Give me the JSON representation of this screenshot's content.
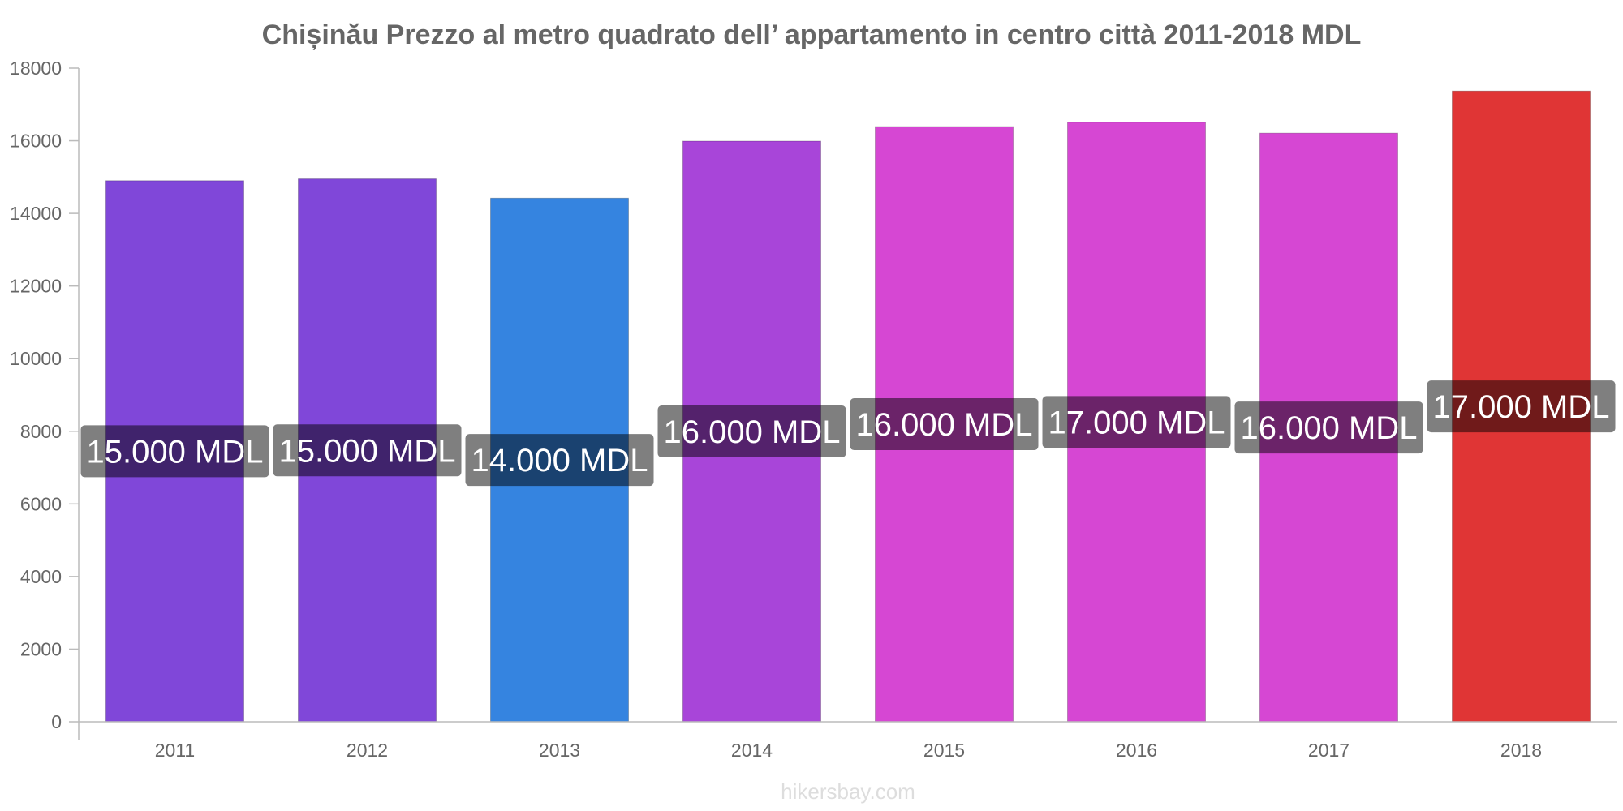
{
  "chart_data": {
    "type": "bar",
    "title": "Chișinău Prezzo al metro quadrato dell’ appartamento in centro città 2011-2018 MDL",
    "categories": [
      "2011",
      "2012",
      "2013",
      "2014",
      "2015",
      "2016",
      "2017",
      "2018"
    ],
    "values": [
      14900,
      14950,
      14420,
      15990,
      16390,
      16510,
      16210,
      17370
    ],
    "value_labels": [
      "15.000 MDL",
      "15.000 MDL",
      "14.000 MDL",
      "16.000 MDL",
      "16.000 MDL",
      "17.000 MDL",
      "16.000 MDL",
      "17.000 MDL"
    ],
    "bar_colors": [
      "#8047d9",
      "#8047d9",
      "#3584e0",
      "#a845d9",
      "#d647d3",
      "#d647d3",
      "#d647d3",
      "#e03535"
    ],
    "ylim": [
      0,
      18000
    ],
    "yticks": [
      "0",
      "2000",
      "4000",
      "6000",
      "8000",
      "10000",
      "12000",
      "14000",
      "16000",
      "18000"
    ],
    "xlabel": "",
    "ylabel": "",
    "grid": false,
    "legend": "none",
    "source": "hikersbay.com"
  }
}
